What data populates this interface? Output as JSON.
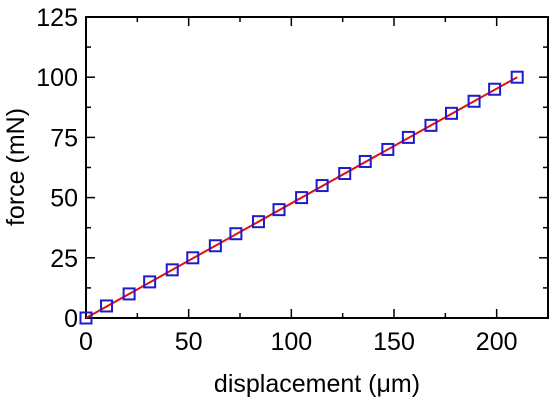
{
  "chart_data": {
    "type": "scatter",
    "title": "",
    "xlabel": "displacement (μm)",
    "ylabel": "force (mN)",
    "xlim": [
      0,
      225
    ],
    "ylim": [
      0,
      125
    ],
    "x_ticks": [
      "0",
      "50",
      "100",
      "150",
      "200"
    ],
    "y_ticks": [
      "0",
      "25",
      "50",
      "75",
      "100",
      "125"
    ],
    "grid": false,
    "series": [
      {
        "marker": "open-square",
        "color": "#1c1ccc",
        "x": [
          0,
          10,
          21,
          31,
          42,
          52,
          63,
          73,
          84,
          94,
          105,
          115,
          126,
          136,
          147,
          157,
          168,
          178,
          189,
          199,
          210
        ],
        "y": [
          0,
          5,
          10,
          15,
          20,
          25,
          30,
          35,
          40,
          45,
          50,
          55,
          60,
          65,
          70,
          75,
          80,
          85,
          90,
          95,
          100
        ]
      }
    ],
    "fit_line": {
      "color": "#e01010",
      "x": [
        0,
        210
      ],
      "y": [
        0,
        100
      ]
    }
  }
}
